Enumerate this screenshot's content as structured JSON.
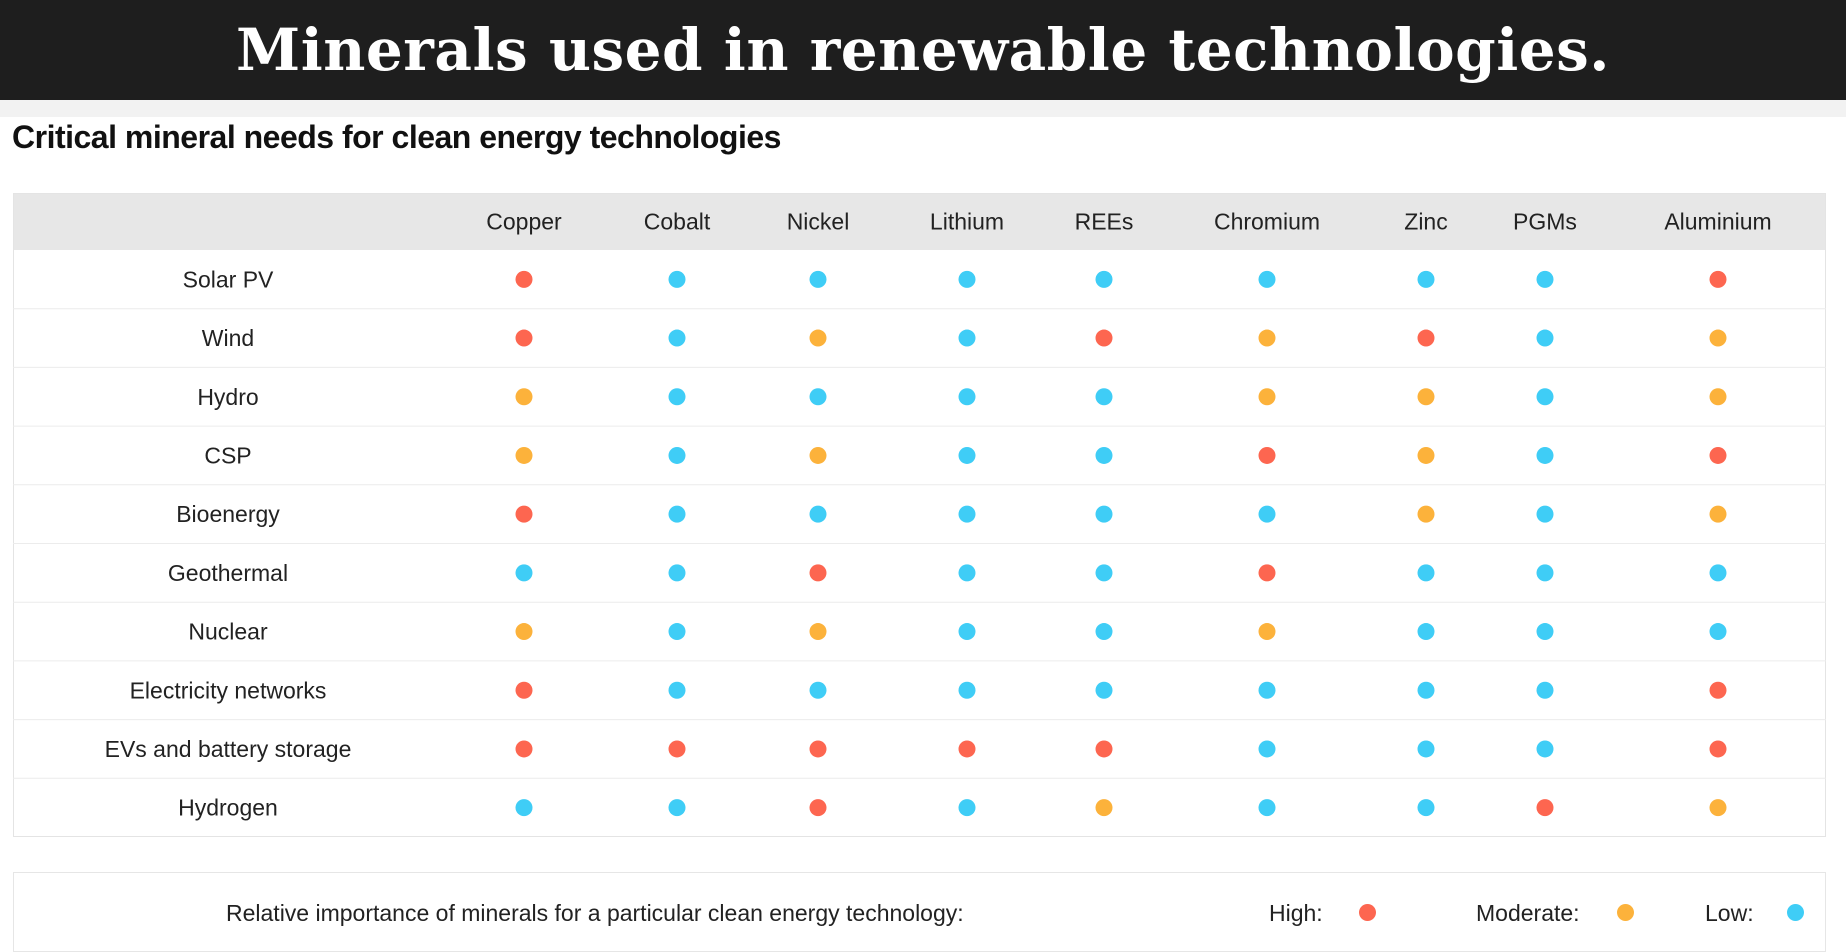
{
  "banner": {
    "title": "Minerals used in renewable technologies."
  },
  "chart_data": {
    "type": "table",
    "title": "Critical mineral needs for clean energy technologies",
    "columns": [
      "Copper",
      "Cobalt",
      "Nickel",
      "Lithium",
      "REEs",
      "Chromium",
      "Zinc",
      "PGMs",
      "Aluminium"
    ],
    "rows": [
      "Solar PV",
      "Wind",
      "Hydro",
      "CSP",
      "Bioenergy",
      "Geothermal",
      "Nuclear",
      "Electricity networks",
      "EVs and battery storage",
      "Hydrogen"
    ],
    "values": [
      [
        "High",
        "Low",
        "Low",
        "Low",
        "Low",
        "Low",
        "Low",
        "Low",
        "High"
      ],
      [
        "High",
        "Low",
        "Moderate",
        "Low",
        "High",
        "Moderate",
        "High",
        "Low",
        "Moderate"
      ],
      [
        "Moderate",
        "Low",
        "Low",
        "Low",
        "Low",
        "Moderate",
        "Moderate",
        "Low",
        "Moderate"
      ],
      [
        "Moderate",
        "Low",
        "Moderate",
        "Low",
        "Low",
        "High",
        "Moderate",
        "Low",
        "High"
      ],
      [
        "High",
        "Low",
        "Low",
        "Low",
        "Low",
        "Low",
        "Moderate",
        "Low",
        "Moderate"
      ],
      [
        "Low",
        "Low",
        "High",
        "Low",
        "Low",
        "High",
        "Low",
        "Low",
        "Low"
      ],
      [
        "Moderate",
        "Low",
        "Moderate",
        "Low",
        "Low",
        "Moderate",
        "Low",
        "Low",
        "Low"
      ],
      [
        "High",
        "Low",
        "Low",
        "Low",
        "Low",
        "Low",
        "Low",
        "Low",
        "High"
      ],
      [
        "High",
        "High",
        "High",
        "High",
        "High",
        "Low",
        "Low",
        "Low",
        "High"
      ],
      [
        "Low",
        "Low",
        "High",
        "Low",
        "Moderate",
        "Low",
        "Low",
        "High",
        "Moderate"
      ]
    ],
    "level_colors": {
      "High": "#fd6650",
      "Moderate": "#fcb23b",
      "Low": "#3fcdf6"
    },
    "header_background": "#e7e7e7"
  },
  "legend": {
    "caption": "Relative importance of minerals for a particular clean energy technology:",
    "items": [
      {
        "label": "High:",
        "level": "High"
      },
      {
        "label": "Moderate:",
        "level": "Moderate"
      },
      {
        "label": "Low:",
        "level": "Low"
      }
    ]
  }
}
